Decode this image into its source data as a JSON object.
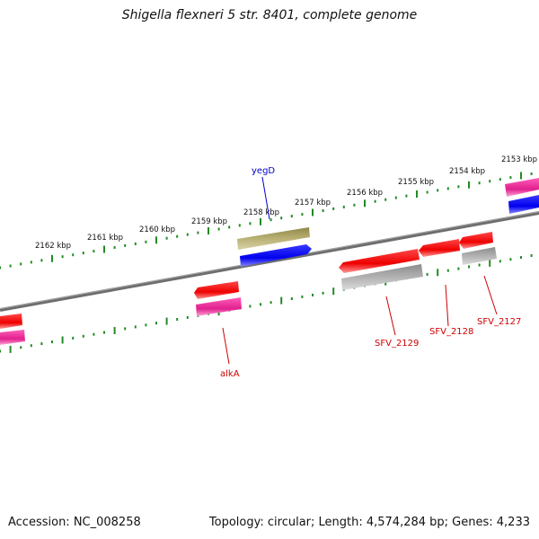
{
  "title": "Shigella flexneri 5 str. 8401, complete genome",
  "footer": {
    "accession": "Accession: NC_008258",
    "summary": "Topology: circular; Length: 4,574,284 bp; Genes: 4,233"
  },
  "tick_labels": [
    "2162 kbp",
    "2161 kbp",
    "2160 kbp",
    "2159 kbp",
    "2158 kbp",
    "2157 kbp",
    "2156 kbp",
    "2155 kbp",
    "2154 kbp",
    "2153 kbp"
  ],
  "gene_labels": {
    "yegD": "yegD",
    "alkA": "alkA",
    "SFV_2129": "SFV_2129",
    "SFV_2128": "SFV_2128",
    "SFV_2127": "SFV_2127"
  },
  "colors": {
    "backbone": "#808080",
    "tick": "#228b22",
    "cds_red": "#ff0000",
    "gene_pink": "#e8209a",
    "gene_blue": "#0000ff",
    "gene_olive": "#b5ad6a",
    "gene_gray": "#b0b0b0",
    "label_blue": "#0000cc",
    "label_red": "#cc0000"
  }
}
